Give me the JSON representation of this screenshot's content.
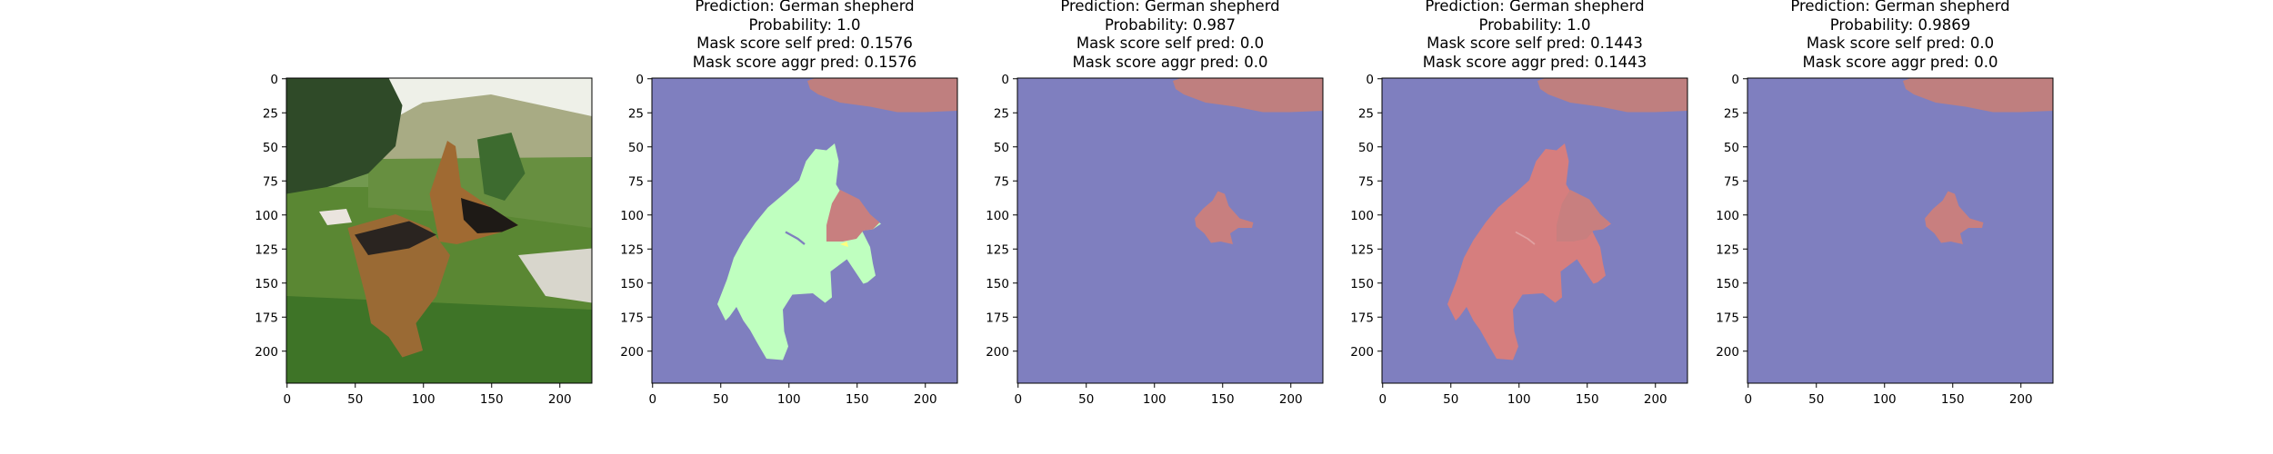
{
  "figure": {
    "panels": [
      {
        "kind": "photo",
        "title_lines": []
      },
      {
        "kind": "mask_both",
        "title_lines": [
          "Prediction: German shepherd",
          "Probability: 1.0",
          "Mask score self pred: 0.1576",
          "Mask score aggr pred: 0.1576"
        ]
      },
      {
        "kind": "mask_small",
        "title_lines": [
          "Prediction: German shepherd",
          "Probability: 0.987",
          "Mask score self pred: 0.0",
          "Mask score aggr pred: 0.0"
        ]
      },
      {
        "kind": "mask_red",
        "title_lines": [
          "Prediction: German shepherd",
          "Probability: 1.0",
          "Mask score self pred: 0.1443",
          "Mask score aggr pred: 0.1443"
        ]
      },
      {
        "kind": "mask_small",
        "title_lines": [
          "Prediction: German shepherd",
          "Probability: 0.9869",
          "Mask score self pred: 0.0",
          "Mask score aggr pred: 0.0"
        ]
      }
    ],
    "x_ticks": [
      "0",
      "50",
      "100",
      "150",
      "200"
    ],
    "y_ticks": [
      "0",
      "25",
      "50",
      "75",
      "100",
      "125",
      "150",
      "175",
      "200"
    ],
    "colors": {
      "background_mask": "#7f7fbf",
      "top_region": "#bf7f7f",
      "dog_green": "#bfffbf",
      "dog_red": "#d67e7e",
      "head_red": "#c87f7f",
      "yellow_fleck": "#ffff7f"
    }
  }
}
